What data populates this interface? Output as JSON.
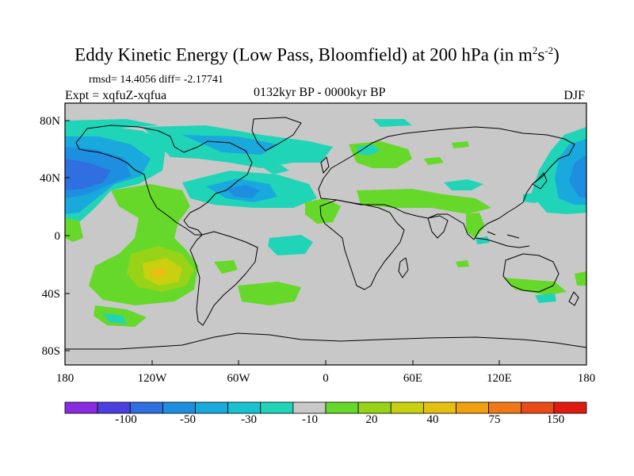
{
  "title": {
    "main": "Eddy Kinetic Energy (Low Pass, Bloomfield) at 200 hPa (in m",
    "sup1": "2",
    "mid": "s",
    "sup2": "-2",
    "end": ")"
  },
  "stats": {
    "rmsd_text": "rmsd= 14.4056 diff= -2.17741",
    "expt_text": "Expt = xqfuZ-xqfua"
  },
  "period": "0132kyr BP - 0000kyr BP",
  "season": "DJF",
  "axes": {
    "lat_labels": [
      "80N",
      "40N",
      "0",
      "40S",
      "80S"
    ],
    "lon_labels": [
      "180",
      "120W",
      "60W",
      "0",
      "60E",
      "120E",
      "180"
    ]
  },
  "colorbar": {
    "colors": [
      "#8a2be2",
      "#4b3fe0",
      "#2f6fe0",
      "#1e8fe0",
      "#1aa9dc",
      "#18c2d0",
      "#20d4b8",
      "#c8c8c8",
      "#66d82a",
      "#98d318",
      "#c8d010",
      "#e6c010",
      "#f0a010",
      "#f07818",
      "#e84a18",
      "#e01a10"
    ],
    "labels": [
      "-100",
      "-50",
      "-30",
      "-10",
      "20",
      "40",
      "75",
      "150"
    ]
  },
  "colors": {
    "ocean_bg": "#c8c8c8",
    "teal": "#20d4b8",
    "cyan": "#18c2d0",
    "blue": "#1e8fe0",
    "deep_blue": "#2f6fe0",
    "green": "#66d82a",
    "light_green": "#98d318",
    "yellow": "#c8d010"
  }
}
